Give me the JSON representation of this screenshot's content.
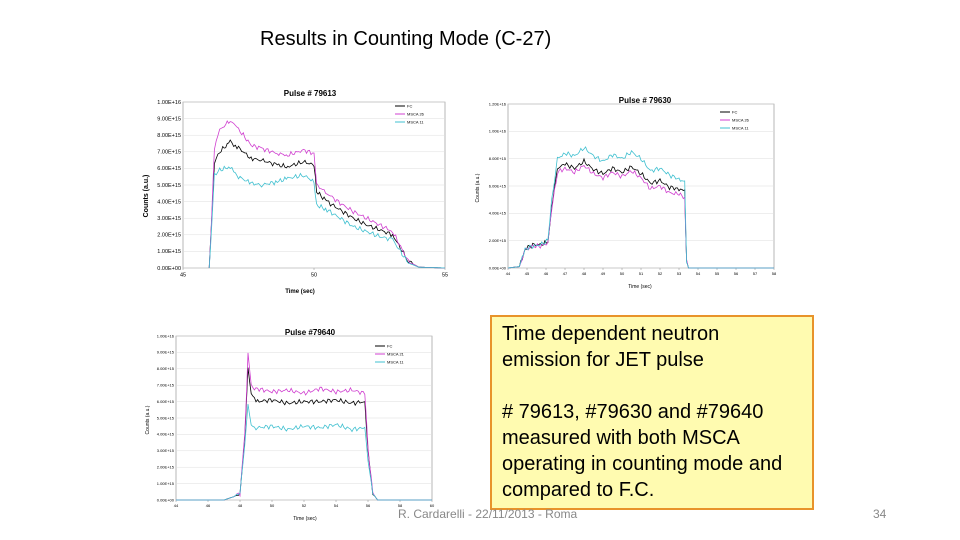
{
  "slide": {
    "title": "Results in Counting Mode (C-27)",
    "callout_line1": "Time dependent neutron emission for JET pulse",
    "callout_line2": "# 79613, #79630 and #79640 measured with both MSCA operating in counting mode and compared to F.C.",
    "footer": "R. Cardarelli - 22/11/2013 - Roma",
    "page_number": "34"
  },
  "colors": {
    "fc": "#000000",
    "msca1": "#d040d0",
    "msca2": "#40c0d0",
    "grid": "#dddddd"
  },
  "chart_data": [
    {
      "type": "line",
      "title": "Pulse # 79613",
      "xlabel": "Time (sec)",
      "ylabel": "Counts (a.u.)",
      "xlim": [
        45,
        55
      ],
      "ylim": [
        0,
        10
      ],
      "x_tick_labels": [
        "45",
        "50",
        "55"
      ],
      "y_tick_labels": [
        "0.00E+00",
        "1.00E+15",
        "2.00E+15",
        "3.00E+15",
        "4.00E+15",
        "5.00E+15",
        "6.00E+15",
        "7.00E+15",
        "8.00E+15",
        "9.00E+15",
        "1.00E+16"
      ],
      "legend": [
        "FC",
        "MSCA 26",
        "MSCA 11"
      ],
      "legend_position": "top-right",
      "series": [
        {
          "name": "FC",
          "x": [
            46.0,
            46.1,
            46.2,
            46.4,
            46.8,
            47.0,
            47.6,
            48.0,
            48.6,
            49.0,
            49.6,
            50.0,
            50.1,
            50.5,
            51.0,
            51.5,
            52.0,
            52.5,
            53.0,
            53.3,
            53.6,
            54.0,
            55.0
          ],
          "y": [
            0,
            3.0,
            6.4,
            7.0,
            7.6,
            7.4,
            6.6,
            6.5,
            6.2,
            6.1,
            6.4,
            6.2,
            4.6,
            4.0,
            3.5,
            3.0,
            2.6,
            2.3,
            2.0,
            1.2,
            0.4,
            0.05,
            0
          ]
        },
        {
          "name": "MSCA 26",
          "x": [
            46.0,
            46.1,
            46.2,
            46.4,
            46.8,
            47.0,
            47.6,
            48.0,
            48.6,
            49.0,
            49.6,
            50.0,
            50.1,
            50.5,
            51.0,
            51.5,
            52.0,
            52.5,
            53.0,
            53.3,
            53.6,
            54.0,
            55.0
          ],
          "y": [
            0,
            3.3,
            7.2,
            8.3,
            8.9,
            8.6,
            7.4,
            7.2,
            6.9,
            6.8,
            7.1,
            6.9,
            5.0,
            4.5,
            3.9,
            3.4,
            3.0,
            2.6,
            2.2,
            1.3,
            0.4,
            0.05,
            0
          ]
        },
        {
          "name": "MSCA 11",
          "x": [
            46.0,
            46.1,
            46.2,
            46.4,
            46.8,
            47.0,
            47.6,
            48.0,
            48.6,
            49.0,
            49.6,
            50.0,
            50.1,
            50.5,
            51.0,
            51.5,
            52.0,
            52.5,
            53.0,
            53.3,
            53.6,
            54.0,
            55.0
          ],
          "y": [
            0,
            2.6,
            5.6,
            5.9,
            6.1,
            5.6,
            5.1,
            5.0,
            5.2,
            5.4,
            5.6,
            5.2,
            3.8,
            3.5,
            3.0,
            2.5,
            2.2,
            1.9,
            1.7,
            1.0,
            0.3,
            0.05,
            0
          ]
        }
      ]
    },
    {
      "type": "line",
      "title": "Pulse # 79630",
      "xlabel": "Time (sec)",
      "ylabel": "Counts (a.u.)",
      "xlim": [
        44,
        58
      ],
      "ylim": [
        0,
        12
      ],
      "x_tick_labels": [
        "44",
        "45",
        "46",
        "47",
        "48",
        "49",
        "50",
        "51",
        "52",
        "53",
        "54",
        "55",
        "56",
        "57",
        "58"
      ],
      "y_tick_labels": [
        "0.00E+00",
        "2.00E+15",
        "4.00E+15",
        "6.00E+15",
        "8.00E+15",
        "1.00E+16",
        "1.20E+16"
      ],
      "legend": [
        "FC",
        "MSCA 26",
        "MSCA 11"
      ],
      "legend_position": "top-right",
      "series": [
        {
          "name": "FC",
          "x": [
            44.0,
            44.6,
            44.9,
            45.3,
            45.7,
            46.1,
            46.3,
            46.6,
            47.0,
            47.5,
            48.0,
            48.5,
            49.0,
            49.5,
            50.0,
            50.5,
            51.0,
            51.5,
            52.0,
            52.5,
            53.0,
            53.3,
            53.4,
            53.5,
            58.0
          ],
          "y": [
            0,
            0.1,
            1.4,
            1.7,
            1.7,
            1.9,
            4.5,
            7.3,
            7.6,
            7.3,
            7.8,
            7.2,
            6.9,
            7.3,
            7.0,
            7.4,
            6.9,
            6.2,
            6.4,
            5.9,
            5.8,
            5.6,
            0.5,
            0,
            0
          ]
        },
        {
          "name": "MSCA 26",
          "x": [
            44.0,
            44.6,
            44.9,
            45.3,
            45.7,
            46.1,
            46.3,
            46.6,
            47.0,
            47.5,
            48.0,
            48.5,
            49.0,
            49.5,
            50.0,
            50.5,
            51.0,
            51.5,
            52.0,
            52.5,
            53.0,
            53.3,
            53.4,
            53.5,
            58.0
          ],
          "y": [
            0,
            0.1,
            1.3,
            1.6,
            1.6,
            1.8,
            4.3,
            7.0,
            7.3,
            7.0,
            7.5,
            6.9,
            6.6,
            7.0,
            6.7,
            7.1,
            6.6,
            5.8,
            6.0,
            5.5,
            5.4,
            5.2,
            0.5,
            0,
            0
          ]
        },
        {
          "name": "MSCA 11",
          "x": [
            44.0,
            44.6,
            44.9,
            45.3,
            45.7,
            46.1,
            46.3,
            46.6,
            47.0,
            47.5,
            48.0,
            48.5,
            49.0,
            49.5,
            50.0,
            50.5,
            51.0,
            51.5,
            52.0,
            52.5,
            53.0,
            53.3,
            53.4,
            53.5,
            58.0
          ],
          "y": [
            0,
            0.1,
            1.4,
            1.6,
            1.7,
            2.0,
            4.9,
            8.0,
            8.4,
            8.2,
            8.8,
            8.2,
            7.8,
            8.3,
            8.0,
            8.5,
            8.0,
            7.1,
            7.3,
            6.8,
            6.5,
            6.3,
            0.5,
            0,
            0
          ]
        }
      ]
    },
    {
      "type": "line",
      "title": "Pulse #79640",
      "xlabel": "Time (sec)",
      "ylabel": "Counts (a.u.)",
      "xlim": [
        44,
        60
      ],
      "ylim": [
        0,
        10
      ],
      "x_tick_labels": [
        "44",
        "46",
        "48",
        "50",
        "52",
        "54",
        "56",
        "58",
        "60"
      ],
      "y_tick_labels": [
        "0.00E+00",
        "1.00E+15",
        "2.00E+15",
        "3.00E+15",
        "4.00E+15",
        "5.00E+15",
        "6.00E+15",
        "7.00E+15",
        "8.00E+15",
        "9.00E+15",
        "1.00E+16"
      ],
      "legend": [
        "FC",
        "MSCA 21",
        "MSCA 11"
      ],
      "legend_position": "top-right",
      "series": [
        {
          "name": "FC",
          "x": [
            44.0,
            47.0,
            47.6,
            48.0,
            48.3,
            48.5,
            48.7,
            49.0,
            50.0,
            51.0,
            52.0,
            53.0,
            54.0,
            55.0,
            55.8,
            56.0,
            56.3,
            56.6,
            60.0
          ],
          "y": [
            0,
            0,
            0.2,
            0.4,
            3.8,
            8.1,
            6.5,
            6.0,
            6.1,
            5.9,
            6.0,
            6.0,
            6.1,
            5.9,
            6.0,
            3.0,
            0.4,
            0,
            0
          ]
        },
        {
          "name": "MSCA 21",
          "x": [
            44.0,
            47.0,
            47.6,
            48.0,
            48.3,
            48.5,
            48.7,
            49.0,
            50.0,
            51.0,
            52.0,
            53.0,
            54.0,
            55.0,
            55.8,
            56.0,
            56.3,
            56.6,
            60.0
          ],
          "y": [
            0,
            0,
            0.2,
            0.4,
            4.0,
            8.9,
            6.9,
            6.8,
            6.6,
            6.7,
            6.5,
            6.8,
            6.6,
            6.7,
            6.5,
            3.2,
            0.4,
            0,
            0
          ]
        },
        {
          "name": "MSCA 11",
          "x": [
            44.0,
            47.0,
            47.6,
            48.0,
            48.3,
            48.5,
            48.7,
            49.0,
            50.0,
            51.0,
            52.0,
            53.0,
            54.0,
            55.0,
            55.8,
            56.0,
            56.3,
            56.6,
            60.0
          ],
          "y": [
            0,
            0,
            0.2,
            0.4,
            3.4,
            5.8,
            4.6,
            4.4,
            4.5,
            4.3,
            4.5,
            4.4,
            4.6,
            4.3,
            4.4,
            2.4,
            0.4,
            0,
            0
          ]
        }
      ]
    }
  ]
}
